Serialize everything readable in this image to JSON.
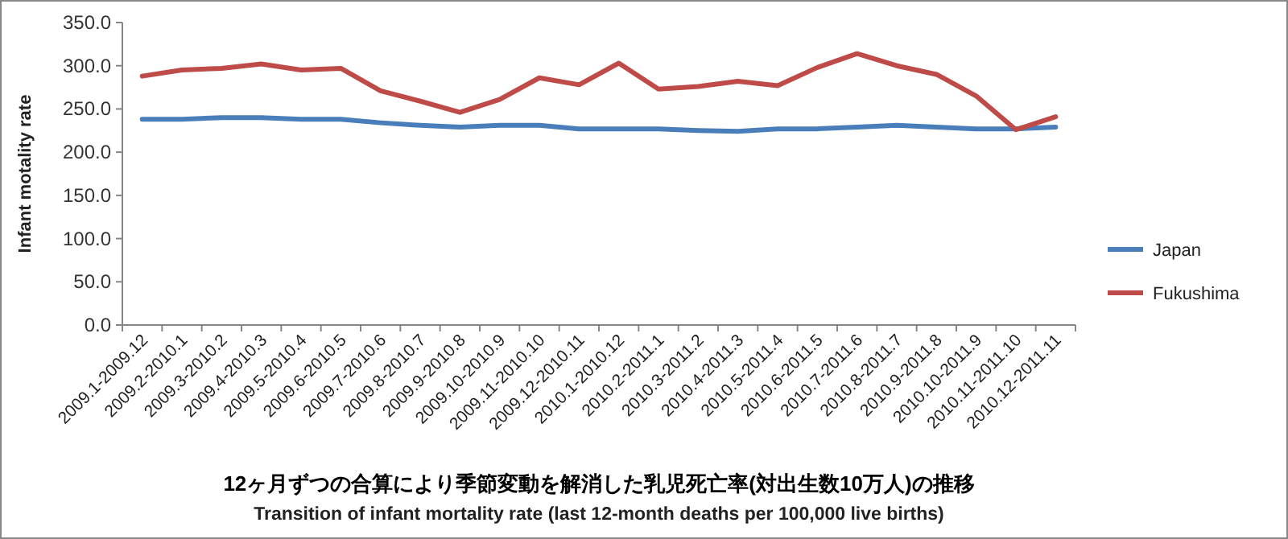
{
  "chart_data": {
    "type": "line",
    "title": "12ヶ月ずつの合算により季節変動を解消した乳児死亡率(対出生数10万人)の推移",
    "subtitle": "Transition of infant mortality rate (last 12-month deaths per 100,000  live births)",
    "ylabel": "Infant motality rate",
    "categories": [
      "2009.1-2009.12",
      "2009.2-2010.1",
      "2009.3-2010.2",
      "2009.4-2010.3",
      "2009.5-2010.4",
      "2009.6-2010.5",
      "2009.7-2010.6",
      "2009.8-2010.7",
      "2009.9-2010.8",
      "2009.10-2010.9",
      "2009.11-2010.10",
      "2009.12-2010.11",
      "2010.1-2010.12",
      "2010.2-2011.1",
      "2010.3-2011.2",
      "2010.4-2011.3",
      "2010.5-2011.4",
      "2010.6-2011.5",
      "2010.7-2011.6",
      "2010.8-2011.7",
      "2010.9-2011.8",
      "2010.10-2011.9",
      "2010.11-2011.10",
      "2010.12-2011.11"
    ],
    "series": [
      {
        "name": "Japan",
        "color": "#4a7ebb",
        "values": [
          238,
          238,
          240,
          240,
          238,
          238,
          234,
          231,
          229,
          231,
          231,
          227,
          227,
          227,
          225,
          224,
          227,
          227,
          229,
          231,
          229,
          227,
          227,
          229
        ]
      },
      {
        "name": "Fukushima",
        "color": "#be4b48",
        "values": [
          288,
          295,
          297,
          302,
          295,
          297,
          271,
          259,
          246,
          261,
          286,
          278,
          303,
          273,
          276,
          282,
          277,
          298,
          314,
          300,
          290,
          265,
          226,
          241
        ]
      }
    ],
    "ylim": [
      0,
      350
    ],
    "yticks": [
      {
        "value": 0,
        "label": "0.0"
      },
      {
        "value": 50,
        "label": "50.0"
      },
      {
        "value": 100,
        "label": "100.0"
      },
      {
        "value": 150,
        "label": "150.0"
      },
      {
        "value": 200,
        "label": "200.0"
      },
      {
        "value": 250,
        "label": "250.0"
      },
      {
        "value": 300,
        "label": "300.0"
      },
      {
        "value": 350,
        "label": "350.0"
      }
    ],
    "grid": false,
    "legend": "right",
    "marker": "none",
    "line_style": "solid"
  }
}
